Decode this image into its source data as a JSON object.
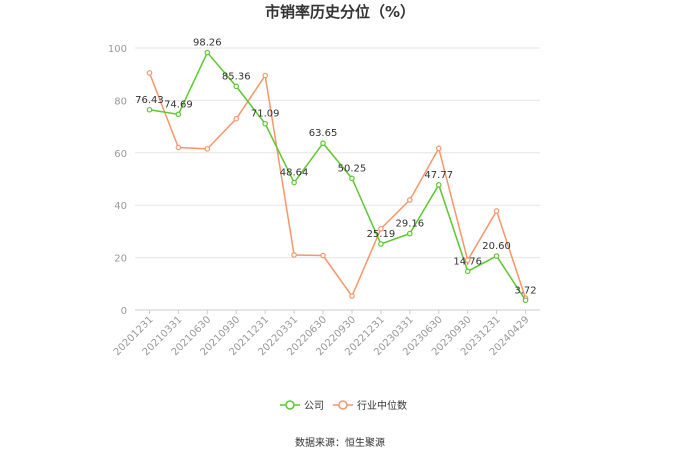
{
  "chart_data": {
    "type": "line",
    "title": "市销率历史分位（%）",
    "categories": [
      "20201231",
      "20210331",
      "20210630",
      "20210930",
      "20211231",
      "20220331",
      "20220630",
      "20220930",
      "20221231",
      "20230331",
      "20230630",
      "20230930",
      "20231231",
      "20240429"
    ],
    "series": [
      {
        "name": "公司",
        "color": "#5cc72f",
        "values": [
          76.43,
          74.69,
          98.26,
          85.36,
          71.09,
          48.64,
          63.65,
          50.25,
          25.19,
          29.16,
          47.77,
          14.76,
          20.6,
          3.72
        ],
        "labels": [
          "76.43",
          "74.69",
          "98.26",
          "85.36",
          "71.09",
          "48.64",
          "63.65",
          "50.25",
          "25.19",
          "29.16",
          "47.77",
          "14.76",
          "20.60",
          "3.72"
        ]
      },
      {
        "name": "行业中位数",
        "color": "#f5966b",
        "values": [
          90.5,
          62.0,
          61.5,
          73.0,
          89.5,
          21.0,
          20.8,
          5.3,
          31.0,
          42.0,
          61.7,
          19.0,
          37.8,
          4.5
        ]
      }
    ],
    "ylim": [
      0,
      100
    ],
    "yticks": [
      "0",
      "20",
      "40",
      "60",
      "80",
      "100"
    ],
    "grid": true,
    "legend": "bottom"
  },
  "footer": {
    "source": "数据来源：恒生聚源"
  }
}
